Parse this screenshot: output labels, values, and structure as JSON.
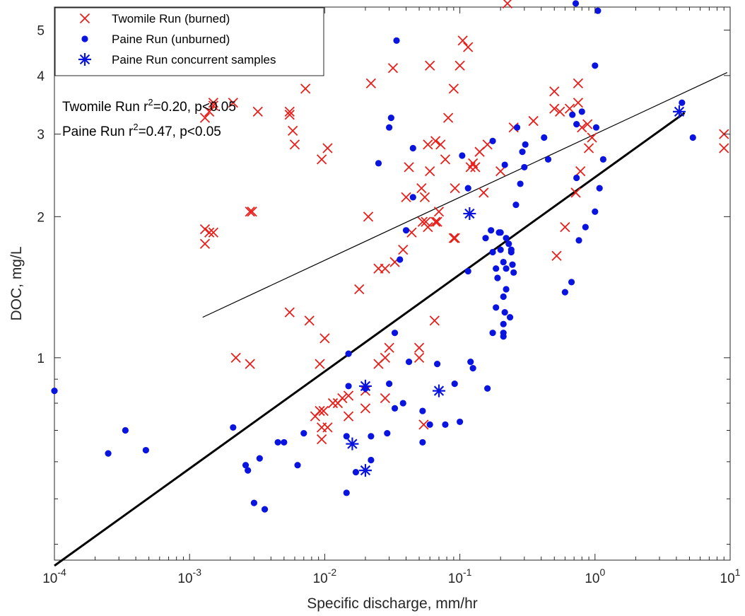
{
  "colors": {
    "burned": "#e8201c",
    "unburned": "#0a14e0",
    "fit": "#000000",
    "axis": "#262626"
  },
  "chart_data": {
    "type": "scatter",
    "x_scale": "log",
    "y_scale": "log",
    "xlim": [
      0.0001,
      10
    ],
    "ylim": [
      0.37,
      5.6
    ],
    "xlabel": "Specific discharge, mm/hr",
    "ylabel": "DOC, mg/L",
    "grid": false,
    "legend_position": "top-left",
    "x_ticks": [
      {
        "value": 0.0001,
        "base": "10",
        "exp": "-4"
      },
      {
        "value": 0.001,
        "base": "10",
        "exp": "-3"
      },
      {
        "value": 0.01,
        "base": "10",
        "exp": "-2"
      },
      {
        "value": 0.1,
        "base": "10",
        "exp": "-1"
      },
      {
        "value": 1,
        "base": "10",
        "exp": "0"
      },
      {
        "value": 10,
        "base": "10",
        "exp": "1"
      }
    ],
    "y_ticks": [
      {
        "value": 1,
        "label": "1"
      },
      {
        "value": 2,
        "label": "2"
      },
      {
        "value": 3,
        "label": "3"
      },
      {
        "value": 4,
        "label": "4"
      },
      {
        "value": 5,
        "label": "5"
      }
    ],
    "annotations": [
      {
        "prefix": "Twomile Run r",
        "sup": "2",
        "suffix": "=0.20, p<0.05"
      },
      {
        "prefix": "Paine Run r",
        "sup": "2",
        "suffix": "=0.47, p<0.05"
      }
    ],
    "series": [
      {
        "name": "Twomile Run (burned)",
        "marker": "x",
        "color": "#e8201c",
        "points": [
          [
            0.225,
            5.7
          ],
          [
            0.105,
            4.75
          ],
          [
            0.115,
            4.6
          ],
          [
            0.032,
            4.15
          ],
          [
            0.06,
            4.2
          ],
          [
            0.1,
            4.2
          ],
          [
            0.0072,
            3.75
          ],
          [
            0.022,
            3.85
          ],
          [
            0.09,
            3.75
          ],
          [
            0.5,
            3.7
          ],
          [
            0.75,
            3.85
          ],
          [
            0.0015,
            3.45
          ],
          [
            0.0014,
            3.35
          ],
          [
            0.0055,
            3.3
          ],
          [
            0.0013,
            3.25
          ],
          [
            0.0021,
            3.5
          ],
          [
            0.0032,
            3.35
          ],
          [
            0.0015,
            3.5
          ],
          [
            0.0055,
            3.35
          ],
          [
            0.25,
            3.1
          ],
          [
            0.35,
            3.2
          ],
          [
            0.55,
            3.35
          ],
          [
            0.65,
            3.4
          ],
          [
            0.75,
            3.5
          ],
          [
            0.5,
            3.4
          ],
          [
            0.8,
            3.1
          ],
          [
            0.88,
            3.15
          ],
          [
            0.0058,
            3.05
          ],
          [
            0.082,
            3.25
          ],
          [
            0.006,
            2.85
          ],
          [
            0.0105,
            2.8
          ],
          [
            0.0095,
            2.65
          ],
          [
            0.066,
            2.9
          ],
          [
            0.058,
            2.85
          ],
          [
            0.072,
            2.85
          ],
          [
            0.16,
            2.85
          ],
          [
            0.14,
            2.75
          ],
          [
            0.9,
            2.8
          ],
          [
            0.95,
            2.95
          ],
          [
            0.078,
            2.65
          ],
          [
            0.042,
            2.55
          ],
          [
            0.06,
            2.5
          ],
          [
            0.12,
            2.55
          ],
          [
            0.125,
            2.6
          ],
          [
            0.13,
            2.55
          ],
          [
            0.2,
            2.5
          ],
          [
            0.78,
            2.5
          ],
          [
            0.052,
            2.3
          ],
          [
            0.092,
            2.3
          ],
          [
            0.04,
            2.2
          ],
          [
            0.055,
            2.2
          ],
          [
            0.15,
            2.25
          ],
          [
            0.72,
            2.25
          ],
          [
            0.07,
            2.05
          ],
          [
            0.021,
            2.0
          ],
          [
            0.0028,
            2.05
          ],
          [
            0.0029,
            2.05
          ],
          [
            0.0013,
            1.88
          ],
          [
            0.0014,
            1.85
          ],
          [
            0.0015,
            1.85
          ],
          [
            0.0013,
            1.75
          ],
          [
            0.053,
            1.95
          ],
          [
            0.056,
            1.95
          ],
          [
            0.066,
            1.95
          ],
          [
            0.058,
            1.9
          ],
          [
            0.044,
            1.85
          ],
          [
            0.068,
            1.95
          ],
          [
            0.09,
            1.8
          ],
          [
            0.092,
            1.8
          ],
          [
            0.6,
            1.9
          ],
          [
            0.52,
            1.65
          ],
          [
            0.038,
            1.7
          ],
          [
            0.033,
            1.6
          ],
          [
            0.028,
            1.55
          ],
          [
            0.025,
            1.55
          ],
          [
            0.018,
            1.4
          ],
          [
            0.0055,
            1.25
          ],
          [
            0.0077,
            1.2
          ],
          [
            0.065,
            1.2
          ],
          [
            0.01,
            1.1
          ],
          [
            0.03,
            1.05
          ],
          [
            0.05,
            1.05
          ],
          [
            0.028,
            1.0
          ],
          [
            0.05,
            1.0
          ],
          [
            0.0022,
            1.0
          ],
          [
            0.0028,
            0.97
          ],
          [
            0.0092,
            0.97
          ],
          [
            0.025,
            0.97
          ],
          [
            0.02,
            0.85
          ],
          [
            0.0125,
            0.8
          ],
          [
            0.0135,
            0.82
          ],
          [
            0.015,
            0.83
          ],
          [
            0.0115,
            0.8
          ],
          [
            0.028,
            0.82
          ],
          [
            0.02,
            0.78
          ],
          [
            0.0098,
            0.77
          ],
          [
            0.0092,
            0.77
          ],
          [
            0.0085,
            0.75
          ],
          [
            0.015,
            0.75
          ],
          [
            0.0095,
            0.71
          ],
          [
            0.0105,
            0.71
          ],
          [
            0.054,
            0.72
          ],
          [
            0.0095,
            0.67
          ],
          [
            9.0,
            3.0
          ],
          [
            9.0,
            2.8
          ]
        ]
      },
      {
        "name": "Paine Run (unburned)",
        "marker": "dot",
        "color": "#0a14e0",
        "points": [
          [
            0.72,
            5.7
          ],
          [
            1.05,
            5.5
          ],
          [
            0.034,
            4.75
          ],
          [
            1.0,
            4.2
          ],
          [
            0.8,
            3.35
          ],
          [
            0.68,
            3.3
          ],
          [
            0.73,
            3.15
          ],
          [
            1.02,
            3.1
          ],
          [
            0.03,
            3.1
          ],
          [
            0.031,
            3.25
          ],
          [
            0.265,
            3.1
          ],
          [
            0.42,
            2.95
          ],
          [
            0.175,
            2.9
          ],
          [
            0.045,
            2.8
          ],
          [
            0.305,
            2.85
          ],
          [
            0.29,
            2.75
          ],
          [
            0.104,
            2.7
          ],
          [
            0.45,
            2.65
          ],
          [
            1.15,
            2.65
          ],
          [
            0.025,
            2.6
          ],
          [
            0.215,
            2.58
          ],
          [
            0.3,
            2.55
          ],
          [
            0.73,
            2.42
          ],
          [
            0.28,
            2.35
          ],
          [
            1.08,
            2.3
          ],
          [
            0.115,
            2.3
          ],
          [
            0.045,
            2.2
          ],
          [
            0.26,
            2.12
          ],
          [
            1.0,
            2.05
          ],
          [
            0.04,
            1.87
          ],
          [
            0.17,
            1.87
          ],
          [
            0.195,
            1.85
          ],
          [
            0.2,
            1.85
          ],
          [
            0.155,
            1.8
          ],
          [
            0.22,
            1.8
          ],
          [
            0.23,
            1.75
          ],
          [
            0.85,
            1.9
          ],
          [
            0.2,
            1.7
          ],
          [
            0.24,
            1.7
          ],
          [
            0.76,
            1.78
          ],
          [
            0.175,
            1.68
          ],
          [
            0.24,
            1.68
          ],
          [
            0.036,
            1.62
          ],
          [
            0.21,
            1.6
          ],
          [
            0.245,
            1.58
          ],
          [
            0.22,
            1.55
          ],
          [
            0.185,
            1.55
          ],
          [
            0.115,
            1.53
          ],
          [
            0.25,
            1.52
          ],
          [
            0.19,
            1.48
          ],
          [
            0.22,
            1.4
          ],
          [
            0.6,
            1.38
          ],
          [
            0.67,
            1.45
          ],
          [
            0.21,
            1.35
          ],
          [
            0.185,
            1.28
          ],
          [
            0.215,
            1.25
          ],
          [
            0.235,
            1.22
          ],
          [
            0.21,
            1.18
          ],
          [
            0.175,
            1.13
          ],
          [
            0.21,
            1.13
          ],
          [
            0.21,
            1.11
          ],
          [
            0.033,
            1.13
          ],
          [
            0.015,
            1.02
          ],
          [
            0.042,
            0.98
          ],
          [
            0.068,
            0.97
          ],
          [
            0.12,
            0.98
          ],
          [
            0.125,
            0.95
          ],
          [
            0.03,
            0.88
          ],
          [
            0.015,
            0.87
          ],
          [
            0.02,
            0.86
          ],
          [
            0.0915,
            0.88
          ],
          [
            0.16,
            0.86
          ],
          [
            0.038,
            0.8
          ],
          [
            0.0001,
            0.85
          ],
          [
            0.033,
            0.78
          ],
          [
            0.053,
            0.77
          ],
          [
            0.06,
            0.72
          ],
          [
            0.078,
            0.72
          ],
          [
            0.1,
            0.73
          ],
          [
            0.000335,
            0.7
          ],
          [
            0.0021,
            0.71
          ],
          [
            0.007,
            0.69
          ],
          [
            0.0145,
            0.68
          ],
          [
            0.022,
            0.68
          ],
          [
            0.029,
            0.69
          ],
          [
            0.0045,
            0.66
          ],
          [
            0.005,
            0.66
          ],
          [
            0.053,
            0.66
          ],
          [
            0.000475,
            0.635
          ],
          [
            0.00025,
            0.625
          ],
          [
            0.0033,
            0.61
          ],
          [
            0.0026,
            0.59
          ],
          [
            0.0027,
            0.575
          ],
          [
            0.0063,
            0.59
          ],
          [
            0.022,
            0.605
          ],
          [
            0.017,
            0.57
          ],
          [
            0.0145,
            0.515
          ],
          [
            0.003,
            0.49
          ],
          [
            0.0036,
            0.475
          ],
          [
            5.3,
            2.95
          ],
          [
            4.4,
            3.5
          ]
        ]
      },
      {
        "name": "Paine Run concurrent samples",
        "marker": "star",
        "color": "#0a14e0",
        "points": [
          [
            4.2,
            3.35
          ],
          [
            0.118,
            2.03
          ],
          [
            0.02,
            0.87
          ],
          [
            0.07,
            0.85
          ],
          [
            0.016,
            0.655
          ],
          [
            0.02,
            0.575
          ]
        ]
      }
    ],
    "fit_lines": [
      {
        "name": "Twomile Run fit",
        "width": 1.2,
        "points": [
          [
            0.00125,
            1.22
          ],
          [
            9.5,
            4.06
          ]
        ]
      },
      {
        "name": "Paine Run fit",
        "width": 3,
        "points": [
          [
            0.0001,
            0.36
          ],
          [
            4.6,
            3.33
          ]
        ]
      }
    ]
  }
}
